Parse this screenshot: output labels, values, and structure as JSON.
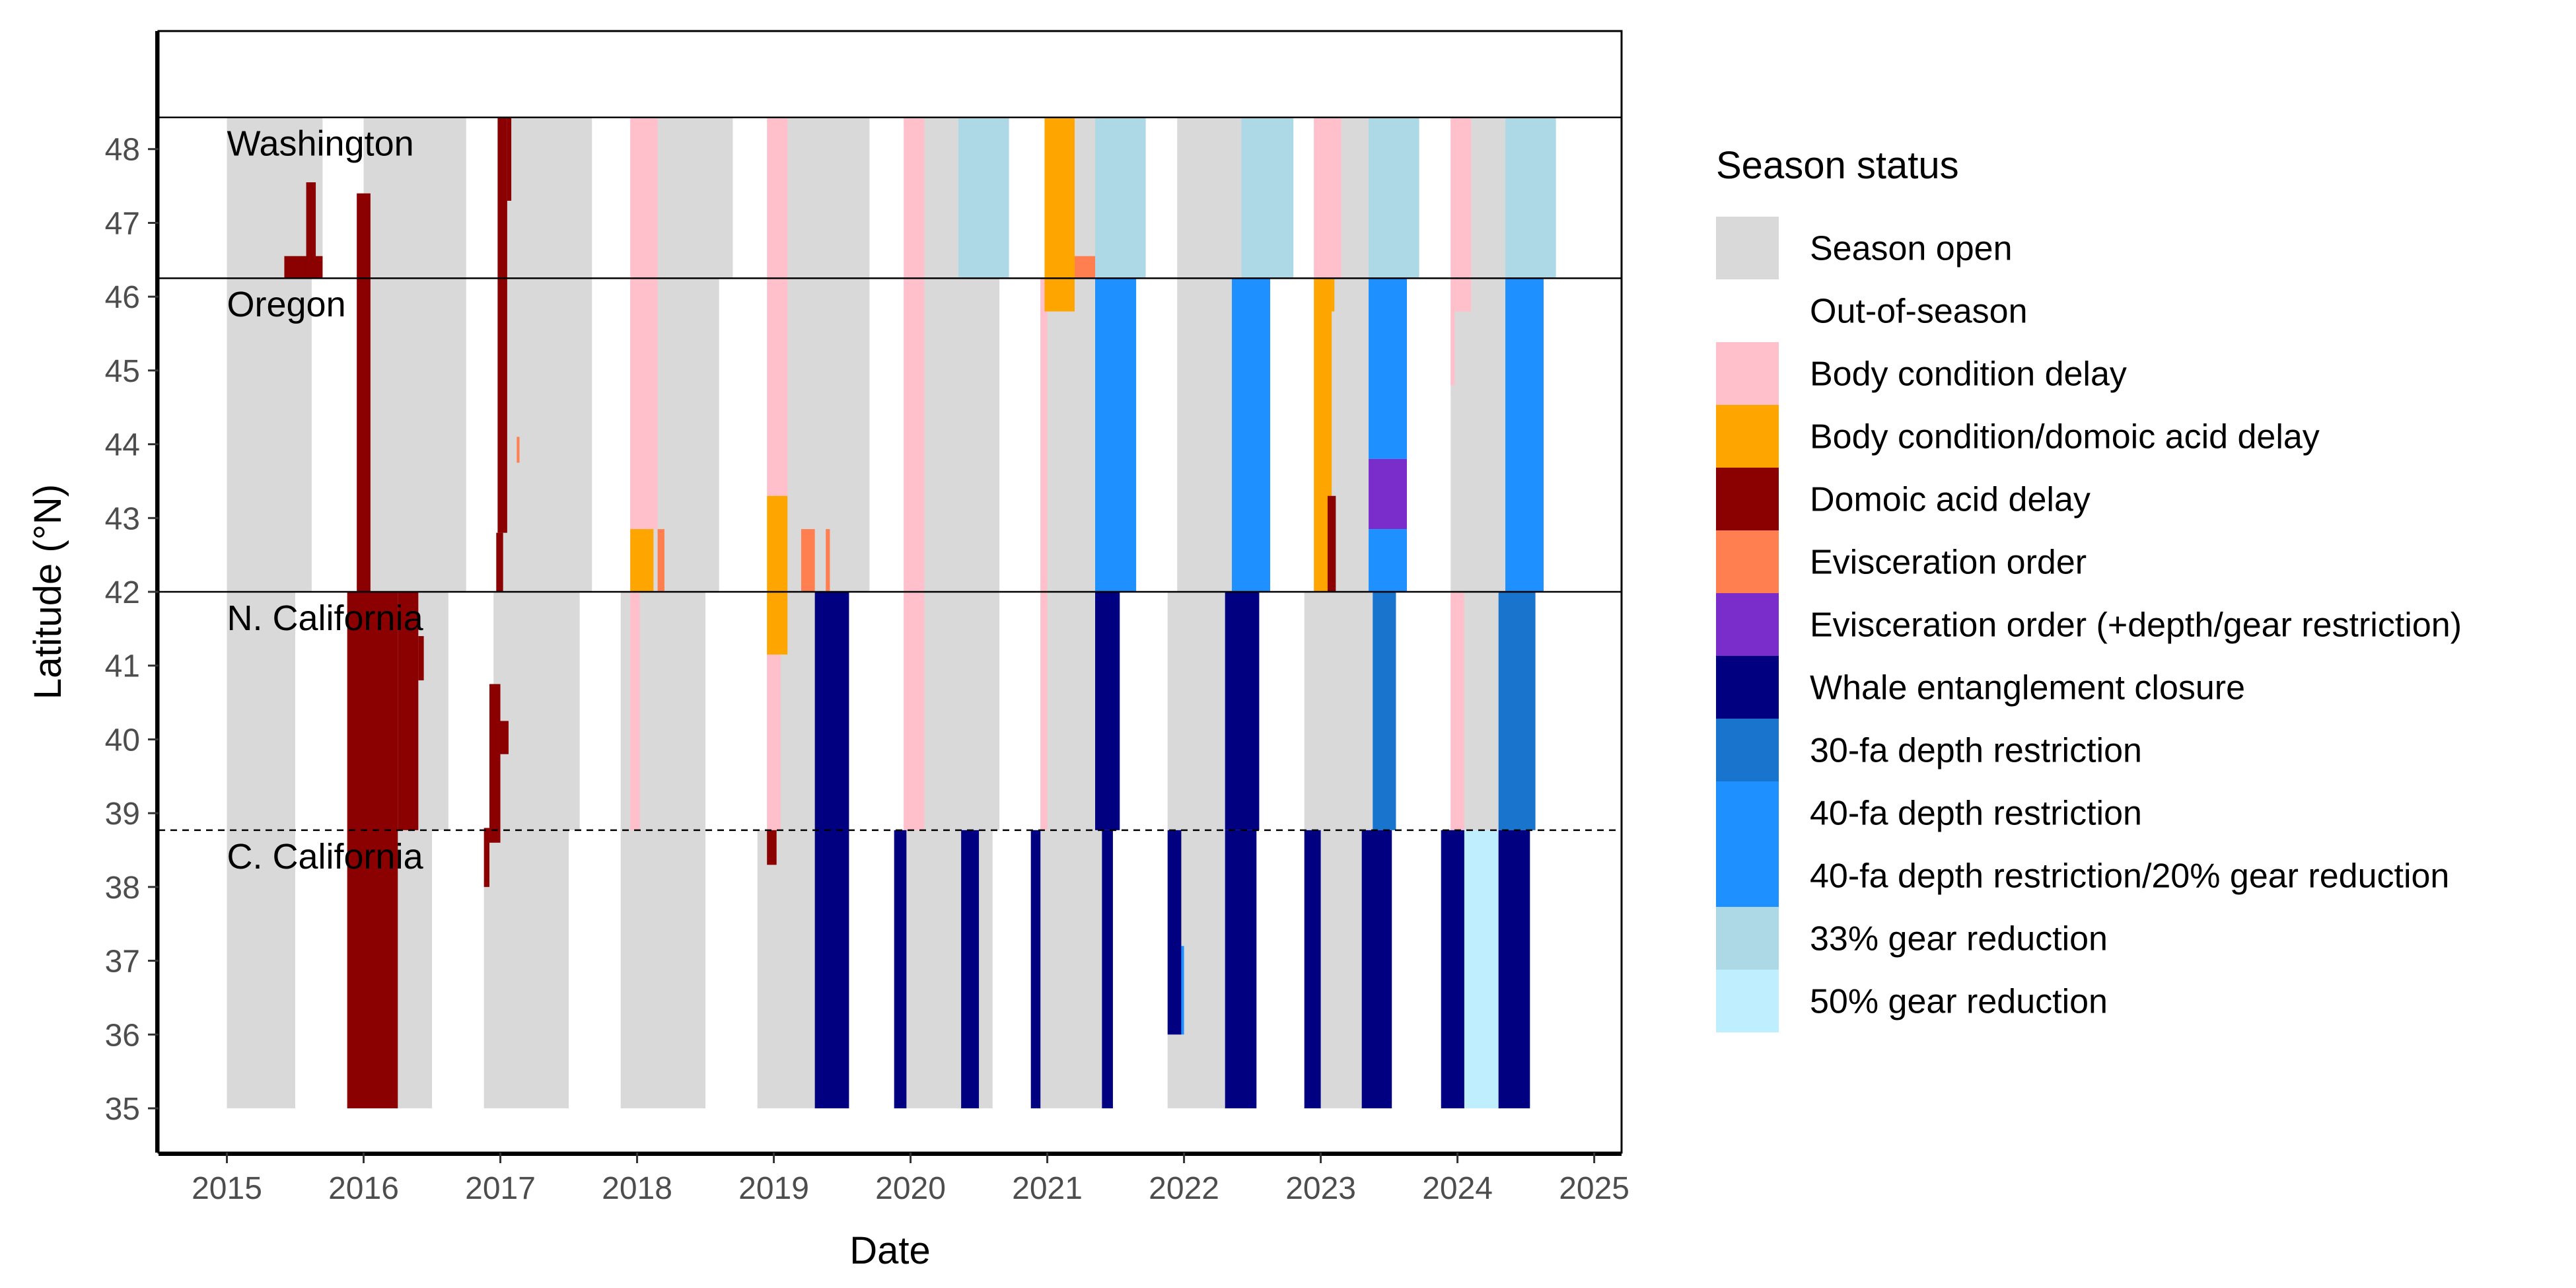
{
  "chart_data": {
    "type": "heatmap",
    "xlabel": "Date",
    "ylabel": "Latitude (°N)",
    "xlim": [
      2014.5,
      2025.2
    ],
    "ylim": [
      34.4,
      49.6
    ],
    "x_ticks": [
      2015,
      2016,
      2017,
      2018,
      2019,
      2020,
      2021,
      2022,
      2023,
      2024,
      2025
    ],
    "y_ticks": [
      35,
      36,
      37,
      38,
      39,
      40,
      41,
      42,
      43,
      44,
      45,
      46,
      47,
      48
    ],
    "grid": false,
    "legend_position": "right",
    "regions": [
      {
        "name": "Washington",
        "lat_min": 46.25,
        "lat_max": 48.43
      },
      {
        "name": "Oregon",
        "lat_min": 42.0,
        "lat_max": 46.25
      },
      {
        "name": "N. California",
        "lat_min": 38.77,
        "lat_max": 42.0
      },
      {
        "name": "C. California",
        "lat_min": 35.0,
        "lat_max": 38.77
      }
    ],
    "region_boundaries": [
      {
        "lat": 48.43,
        "style": "solid"
      },
      {
        "lat": 46.25,
        "style": "solid"
      },
      {
        "lat": 42.0,
        "style": "solid"
      },
      {
        "lat": 38.77,
        "style": "dashed"
      }
    ],
    "legend": {
      "title": "Season status",
      "items": [
        {
          "label": "Season open",
          "color": "#d9d9d9"
        },
        {
          "label": "Out-of-season",
          "color": "#ffffff"
        },
        {
          "label": "Body condition delay",
          "color": "#ffc0cb"
        },
        {
          "label": "Body condition/domoic acid delay",
          "color": "#ffa500"
        },
        {
          "label": "Domoic acid delay",
          "color": "#8b0000"
        },
        {
          "label": "Evisceration order",
          "color": "#ff7f50"
        },
        {
          "label": "Evisceration order (+depth/gear restriction)",
          "color": "#7b2dcc"
        },
        {
          "label": "Whale entanglement closure",
          "color": "#000080"
        },
        {
          "label": "30-fa depth restriction",
          "color": "#1874cd"
        },
        {
          "label": "40-fa depth restriction",
          "color": "#1e90ff"
        },
        {
          "label": "40-fa depth restriction/20% gear reduction",
          "color": "#1e90ff"
        },
        {
          "label": "33% gear reduction",
          "color": "#add8e6"
        },
        {
          "label": "50% gear reduction",
          "color": "#bfefff"
        }
      ]
    },
    "rects": [
      {
        "x0": 2015.0,
        "x1": 2015.5,
        "y0": 35.0,
        "y1": 42.0,
        "status": "Season open"
      },
      {
        "x0": 2015.0,
        "x1": 2015.62,
        "y0": 42.0,
        "y1": 46.25,
        "status": "Season open"
      },
      {
        "x0": 2015.0,
        "x1": 2015.7,
        "y0": 46.25,
        "y1": 48.43,
        "status": "Season open"
      },
      {
        "x0": 2015.42,
        "x1": 2015.7,
        "y0": 46.25,
        "y1": 46.55,
        "status": "Domoic acid delay"
      },
      {
        "x0": 2015.58,
        "x1": 2015.65,
        "y0": 46.25,
        "y1": 47.55,
        "status": "Domoic acid delay"
      },
      {
        "x0": 2015.88,
        "x1": 2016.5,
        "y0": 35.0,
        "y1": 38.77,
        "status": "Season open"
      },
      {
        "x0": 2016.0,
        "x1": 2016.62,
        "y0": 38.77,
        "y1": 42.0,
        "status": "Season open"
      },
      {
        "x0": 2016.0,
        "x1": 2016.75,
        "y0": 42.0,
        "y1": 48.43,
        "status": "Season open"
      },
      {
        "x0": 2015.88,
        "x1": 2016.25,
        "y0": 35.0,
        "y1": 42.0,
        "status": "Domoic acid delay"
      },
      {
        "x0": 2016.25,
        "x1": 2016.4,
        "y0": 38.77,
        "y1": 42.0,
        "status": "Domoic acid delay"
      },
      {
        "x0": 2016.4,
        "x1": 2016.44,
        "y0": 40.8,
        "y1": 41.4,
        "status": "Domoic acid delay"
      },
      {
        "x0": 2015.95,
        "x1": 2016.05,
        "y0": 42.0,
        "y1": 47.4,
        "status": "Domoic acid delay"
      },
      {
        "x0": 2016.88,
        "x1": 2017.5,
        "y0": 35.0,
        "y1": 38.77,
        "status": "Season open"
      },
      {
        "x0": 2016.95,
        "x1": 2017.58,
        "y0": 38.77,
        "y1": 42.0,
        "status": "Season open"
      },
      {
        "x0": 2017.0,
        "x1": 2017.67,
        "y0": 42.0,
        "y1": 48.43,
        "status": "Season open"
      },
      {
        "x0": 2016.88,
        "x1": 2016.92,
        "y0": 38.0,
        "y1": 38.8,
        "status": "Domoic acid delay"
      },
      {
        "x0": 2016.92,
        "x1": 2017.0,
        "y0": 38.6,
        "y1": 40.75,
        "status": "Domoic acid delay"
      },
      {
        "x0": 2016.97,
        "x1": 2017.06,
        "y0": 39.8,
        "y1": 40.25,
        "status": "Domoic acid delay"
      },
      {
        "x0": 2016.97,
        "x1": 2017.02,
        "y0": 42.0,
        "y1": 42.8,
        "status": "Domoic acid delay"
      },
      {
        "x0": 2016.98,
        "x1": 2017.05,
        "y0": 42.8,
        "y1": 48.43,
        "status": "Domoic acid delay"
      },
      {
        "x0": 2017.05,
        "x1": 2017.08,
        "y0": 47.3,
        "y1": 48.43,
        "status": "Domoic acid delay"
      },
      {
        "x0": 2017.12,
        "x1": 2017.14,
        "y0": 43.75,
        "y1": 44.1,
        "status": "Evisceration order"
      },
      {
        "x0": 2017.88,
        "x1": 2018.5,
        "y0": 35.0,
        "y1": 42.0,
        "status": "Season open"
      },
      {
        "x0": 2017.95,
        "x1": 2018.6,
        "y0": 42.0,
        "y1": 46.25,
        "status": "Season open"
      },
      {
        "x0": 2018.0,
        "x1": 2018.7,
        "y0": 46.25,
        "y1": 48.43,
        "status": "Season open"
      },
      {
        "x0": 2017.95,
        "x1": 2018.02,
        "y0": 38.77,
        "y1": 42.0,
        "status": "Body condition delay"
      },
      {
        "x0": 2017.95,
        "x1": 2018.15,
        "y0": 42.85,
        "y1": 46.25,
        "status": "Body condition delay"
      },
      {
        "x0": 2017.95,
        "x1": 2018.15,
        "y0": 46.25,
        "y1": 48.43,
        "status": "Body condition delay"
      },
      {
        "x0": 2017.95,
        "x1": 2018.12,
        "y0": 42.0,
        "y1": 42.85,
        "status": "Body condition/domoic acid delay"
      },
      {
        "x0": 2018.15,
        "x1": 2018.2,
        "y0": 42.0,
        "y1": 42.85,
        "status": "Evisceration order"
      },
      {
        "x0": 2018.88,
        "x1": 2019.3,
        "y0": 35.0,
        "y1": 38.77,
        "status": "Season open"
      },
      {
        "x0": 2018.95,
        "x1": 2019.3,
        "y0": 38.77,
        "y1": 42.0,
        "status": "Season open"
      },
      {
        "x0": 2019.0,
        "x1": 2019.7,
        "y0": 42.0,
        "y1": 48.43,
        "status": "Season open"
      },
      {
        "x0": 2018.95,
        "x1": 2019.05,
        "y0": 38.77,
        "y1": 41.15,
        "status": "Body condition delay"
      },
      {
        "x0": 2018.95,
        "x1": 2019.1,
        "y0": 43.3,
        "y1": 48.43,
        "status": "Body condition delay"
      },
      {
        "x0": 2018.95,
        "x1": 2019.1,
        "y0": 41.15,
        "y1": 43.3,
        "status": "Body condition/domoic acid delay"
      },
      {
        "x0": 2018.95,
        "x1": 2019.02,
        "y0": 38.3,
        "y1": 38.77,
        "status": "Domoic acid delay"
      },
      {
        "x0": 2019.2,
        "x1": 2019.3,
        "y0": 42.0,
        "y1": 42.85,
        "status": "Evisceration order"
      },
      {
        "x0": 2019.38,
        "x1": 2019.41,
        "y0": 42.0,
        "y1": 42.85,
        "status": "Evisceration order"
      },
      {
        "x0": 2019.3,
        "x1": 2019.55,
        "y0": 35.0,
        "y1": 42.0,
        "status": "Whale entanglement closure"
      },
      {
        "x0": 2019.88,
        "x1": 2020.6,
        "y0": 35.0,
        "y1": 38.77,
        "status": "Season open"
      },
      {
        "x0": 2019.95,
        "x1": 2020.65,
        "y0": 38.77,
        "y1": 46.25,
        "status": "Season open"
      },
      {
        "x0": 2020.0,
        "x1": 2020.35,
        "y0": 46.25,
        "y1": 48.43,
        "status": "Season open"
      },
      {
        "x0": 2019.95,
        "x1": 2020.1,
        "y0": 38.77,
        "y1": 48.43,
        "status": "Body condition delay"
      },
      {
        "x0": 2020.35,
        "x1": 2020.72,
        "y0": 46.25,
        "y1": 48.43,
        "status": "33% gear reduction"
      },
      {
        "x0": 2019.88,
        "x1": 2019.97,
        "y0": 35.0,
        "y1": 38.77,
        "status": "Whale entanglement closure"
      },
      {
        "x0": 2020.37,
        "x1": 2020.5,
        "y0": 35.0,
        "y1": 38.77,
        "status": "Whale entanglement closure"
      },
      {
        "x0": 2020.88,
        "x1": 2021.45,
        "y0": 35.0,
        "y1": 38.77,
        "status": "Season open"
      },
      {
        "x0": 2020.95,
        "x1": 2021.35,
        "y0": 38.77,
        "y1": 46.25,
        "status": "Season open"
      },
      {
        "x0": 2021.0,
        "x1": 2021.35,
        "y0": 46.25,
        "y1": 48.43,
        "status": "Season open"
      },
      {
        "x0": 2020.95,
        "x1": 2021.0,
        "y0": 38.77,
        "y1": 46.25,
        "status": "Body condition delay"
      },
      {
        "x0": 2020.98,
        "x1": 2021.2,
        "y0": 45.8,
        "y1": 48.43,
        "status": "Body condition/domoic acid delay"
      },
      {
        "x0": 2021.2,
        "x1": 2021.35,
        "y0": 46.25,
        "y1": 46.55,
        "status": "Evisceration order"
      },
      {
        "x0": 2021.35,
        "x1": 2021.72,
        "y0": 46.25,
        "y1": 48.43,
        "status": "33% gear reduction"
      },
      {
        "x0": 2021.35,
        "x1": 2021.65,
        "y0": 42.0,
        "y1": 46.25,
        "status": "40-fa depth restriction"
      },
      {
        "x0": 2020.88,
        "x1": 2020.95,
        "y0": 35.0,
        "y1": 38.77,
        "status": "Whale entanglement closure"
      },
      {
        "x0": 2021.35,
        "x1": 2021.53,
        "y0": 38.77,
        "y1": 42.0,
        "status": "Whale entanglement closure"
      },
      {
        "x0": 2021.4,
        "x1": 2021.48,
        "y0": 35.0,
        "y1": 38.77,
        "status": "Whale entanglement closure"
      },
      {
        "x0": 2021.88,
        "x1": 2022.3,
        "y0": 35.0,
        "y1": 38.77,
        "status": "Season open"
      },
      {
        "x0": 2021.88,
        "x1": 2022.3,
        "y0": 38.77,
        "y1": 42.0,
        "status": "Season open"
      },
      {
        "x0": 2021.95,
        "x1": 2022.35,
        "y0": 42.0,
        "y1": 46.25,
        "status": "Season open"
      },
      {
        "x0": 2021.95,
        "x1": 2022.42,
        "y0": 46.25,
        "y1": 48.43,
        "status": "Season open"
      },
      {
        "x0": 2022.42,
        "x1": 2022.8,
        "y0": 46.25,
        "y1": 48.43,
        "status": "33% gear reduction"
      },
      {
        "x0": 2022.35,
        "x1": 2022.63,
        "y0": 42.0,
        "y1": 46.25,
        "status": "40-fa depth restriction"
      },
      {
        "x0": 2021.88,
        "x1": 2021.98,
        "y0": 36.0,
        "y1": 38.77,
        "status": "Whale entanglement closure"
      },
      {
        "x0": 2021.98,
        "x1": 2022.0,
        "y0": 36.0,
        "y1": 37.2,
        "status": "40-fa depth restriction"
      },
      {
        "x0": 2022.3,
        "x1": 2022.53,
        "y0": 35.0,
        "y1": 38.77,
        "status": "Whale entanglement closure"
      },
      {
        "x0": 2022.3,
        "x1": 2022.55,
        "y0": 38.77,
        "y1": 42.0,
        "status": "Whale entanglement closure"
      },
      {
        "x0": 2022.88,
        "x1": 2023.32,
        "y0": 35.0,
        "y1": 38.77,
        "status": "Season open"
      },
      {
        "x0": 2022.88,
        "x1": 2023.38,
        "y0": 38.77,
        "y1": 42.0,
        "status": "Season open"
      },
      {
        "x0": 2022.95,
        "x1": 2023.35,
        "y0": 42.0,
        "y1": 46.25,
        "status": "Season open"
      },
      {
        "x0": 2022.95,
        "x1": 2023.35,
        "y0": 46.25,
        "y1": 48.43,
        "status": "Season open"
      },
      {
        "x0": 2022.95,
        "x1": 2023.15,
        "y0": 46.25,
        "y1": 48.43,
        "status": "Body condition delay"
      },
      {
        "x0": 2022.95,
        "x1": 2023.08,
        "y0": 42.0,
        "y1": 46.25,
        "status": "Body condition/domoic acid delay"
      },
      {
        "x0": 2023.08,
        "x1": 2023.1,
        "y0": 45.8,
        "y1": 46.25,
        "status": "Body condition/domoic acid delay"
      },
      {
        "x0": 2023.05,
        "x1": 2023.11,
        "y0": 42.0,
        "y1": 43.3,
        "status": "Domoic acid delay"
      },
      {
        "x0": 2023.35,
        "x1": 2023.72,
        "y0": 46.25,
        "y1": 48.43,
        "status": "33% gear reduction"
      },
      {
        "x0": 2023.35,
        "x1": 2023.63,
        "y0": 43.8,
        "y1": 46.25,
        "status": "40-fa depth restriction"
      },
      {
        "x0": 2023.35,
        "x1": 2023.63,
        "y0": 42.85,
        "y1": 43.8,
        "status": "Evisceration order (+depth/gear restriction)"
      },
      {
        "x0": 2023.35,
        "x1": 2023.63,
        "y0": 42.0,
        "y1": 42.85,
        "status": "40-fa depth restriction"
      },
      {
        "x0": 2023.38,
        "x1": 2023.55,
        "y0": 38.77,
        "y1": 42.0,
        "status": "30-fa depth restriction"
      },
      {
        "x0": 2022.88,
        "x1": 2023.0,
        "y0": 35.0,
        "y1": 38.77,
        "status": "Whale entanglement closure"
      },
      {
        "x0": 2023.3,
        "x1": 2023.52,
        "y0": 35.0,
        "y1": 38.77,
        "status": "Whale entanglement closure"
      },
      {
        "x0": 2023.88,
        "x1": 2024.3,
        "y0": 35.0,
        "y1": 38.77,
        "status": "Season open"
      },
      {
        "x0": 2023.95,
        "x1": 2024.3,
        "y0": 38.77,
        "y1": 42.0,
        "status": "Season open"
      },
      {
        "x0": 2023.95,
        "x1": 2024.35,
        "y0": 42.0,
        "y1": 48.43,
        "status": "Season open"
      },
      {
        "x0": 2023.95,
        "x1": 2024.05,
        "y0": 38.77,
        "y1": 42.0,
        "status": "Body condition delay"
      },
      {
        "x0": 2023.95,
        "x1": 2024.1,
        "y0": 45.8,
        "y1": 48.43,
        "status": "Body condition delay"
      },
      {
        "x0": 2023.95,
        "x1": 2023.98,
        "y0": 44.8,
        "y1": 45.8,
        "status": "Body condition delay"
      },
      {
        "x0": 2024.35,
        "x1": 2024.72,
        "y0": 46.25,
        "y1": 48.43,
        "status": "33% gear reduction"
      },
      {
        "x0": 2024.35,
        "x1": 2024.63,
        "y0": 42.0,
        "y1": 46.25,
        "status": "40-fa depth restriction"
      },
      {
        "x0": 2024.3,
        "x1": 2024.57,
        "y0": 38.77,
        "y1": 42.0,
        "status": "30-fa depth restriction"
      },
      {
        "x0": 2023.88,
        "x1": 2024.05,
        "y0": 35.0,
        "y1": 38.77,
        "status": "Whale entanglement closure"
      },
      {
        "x0": 2024.05,
        "x1": 2024.3,
        "y0": 35.0,
        "y1": 38.77,
        "status": "50% gear reduction"
      },
      {
        "x0": 2024.3,
        "x1": 2024.53,
        "y0": 35.0,
        "y1": 38.77,
        "status": "Whale entanglement closure"
      }
    ]
  }
}
